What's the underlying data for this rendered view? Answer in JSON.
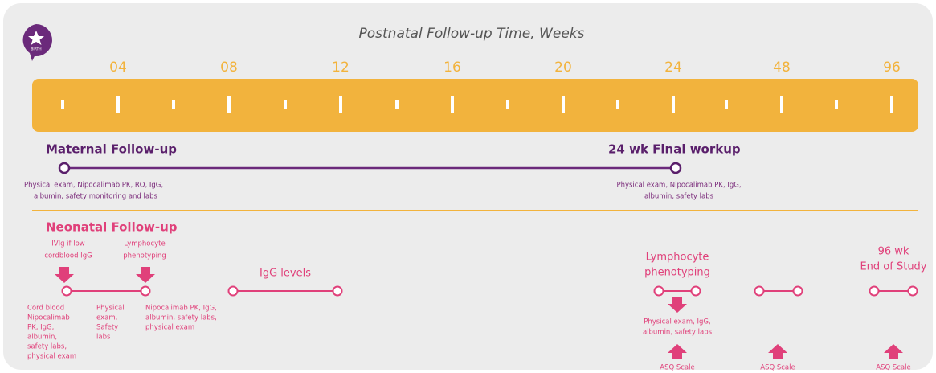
{
  "header": {
    "title": "Postnatal Follow-up Time, Weeks",
    "birth_label": "BIRTH"
  },
  "weeks": [
    "04",
    "08",
    "12",
    "16",
    "20",
    "24",
    "48",
    "96"
  ],
  "maternal": {
    "heading": "Maternal Follow-up",
    "final_heading": "24 wk Final workup",
    "start_note": [
      "Physical exam, Nipocalimab PK, RO, IgG,",
      "albumin, safety monitoring and labs"
    ],
    "end_note": [
      "Physical exam, Nipocalimab PK, IgG,",
      "albumin, safety labs"
    ]
  },
  "neonatal": {
    "heading": "Neonatal Follow-up",
    "ivig": [
      "IVIg if low",
      "cordblood IgG"
    ],
    "lympho_early": [
      "Lymphocyte",
      "phenotyping"
    ],
    "igg_levels": "IgG levels",
    "cord_note": [
      "Cord blood",
      "Nipocalimab",
      "PK, IgG,",
      "albumin,",
      "safety labs,",
      "physical exam"
    ],
    "physical_note": [
      "Physical",
      "exam,",
      "Safety",
      "labs"
    ],
    "pk_note": [
      "Nipocalimab PK, IgG,",
      "albumin, safety labs,",
      "physical exam"
    ],
    "lympho_late": [
      "Lymphocyte",
      "phenotyping"
    ],
    "late_note": [
      "Physical exam, IgG,",
      "albumin, safety labs"
    ],
    "end_study": [
      "96 wk",
      "End of Study"
    ],
    "asq": [
      "ASQ Scale",
      "ASQ Scale",
      "ASQ Scale"
    ]
  }
}
